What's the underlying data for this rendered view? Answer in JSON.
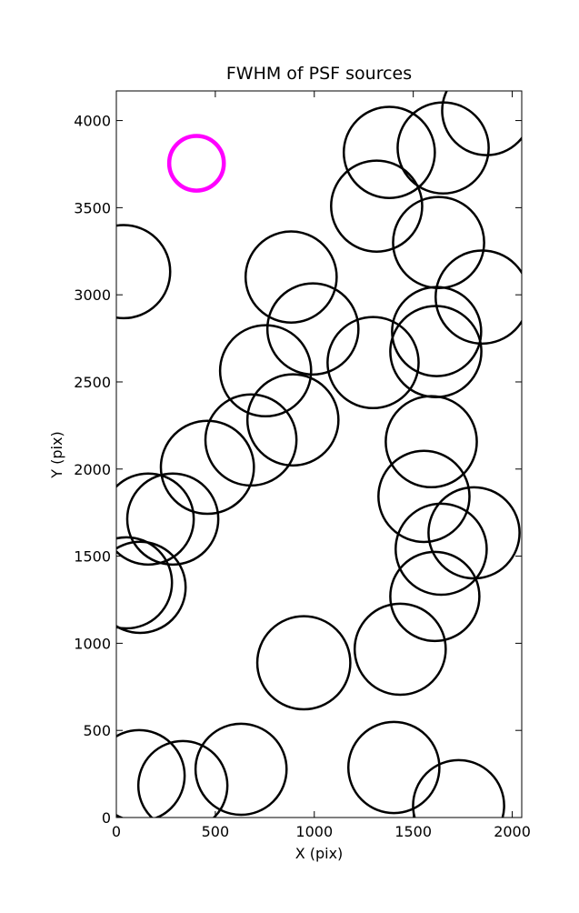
{
  "chart_data": {
    "type": "scatter",
    "title": "FWHM of PSF sources",
    "xlabel": "X (pix)",
    "ylabel": "Y (pix)",
    "xlim": [
      0,
      2048
    ],
    "ylim": [
      0,
      4170
    ],
    "xticks": [
      0,
      500,
      1000,
      1500,
      2000
    ],
    "yticks": [
      0,
      500,
      1000,
      1500,
      2000,
      2500,
      3000,
      3500,
      4000
    ],
    "series": [
      {
        "color": "#000000",
        "x": [
          1379,
          1651,
          1871,
          1315,
          1628,
          37,
          883,
          1848,
          993,
          1618,
          1614,
          1297,
          754,
          892,
          680,
          1591,
          460,
          161,
          285,
          1554,
          1807,
          1641,
          1609,
          51,
          120,
          1434,
          947,
          115,
          336,
          630,
          1402,
          1729
        ],
        "y": [
          3817,
          3843,
          4057,
          3509,
          3300,
          3133,
          3102,
          2987,
          2804,
          2789,
          2674,
          2611,
          2564,
          2282,
          2167,
          2157,
          2010,
          1713,
          1713,
          1843,
          1634,
          1540,
          1269,
          1347,
          1321,
          966,
          888,
          240,
          183,
          277,
          287,
          68
        ],
        "sizes": [
          230,
          230,
          225,
          230,
          230,
          235,
          230,
          235,
          230,
          225,
          230,
          230,
          230,
          230,
          230,
          230,
          235,
          230,
          230,
          230,
          230,
          230,
          225,
          230,
          230,
          230,
          235,
          230,
          225,
          230,
          230,
          230
        ]
      },
      {
        "color": "#ff00ff",
        "x": [
          405
        ],
        "y": [
          3755
        ],
        "sizes": [
          138
        ]
      }
    ]
  }
}
